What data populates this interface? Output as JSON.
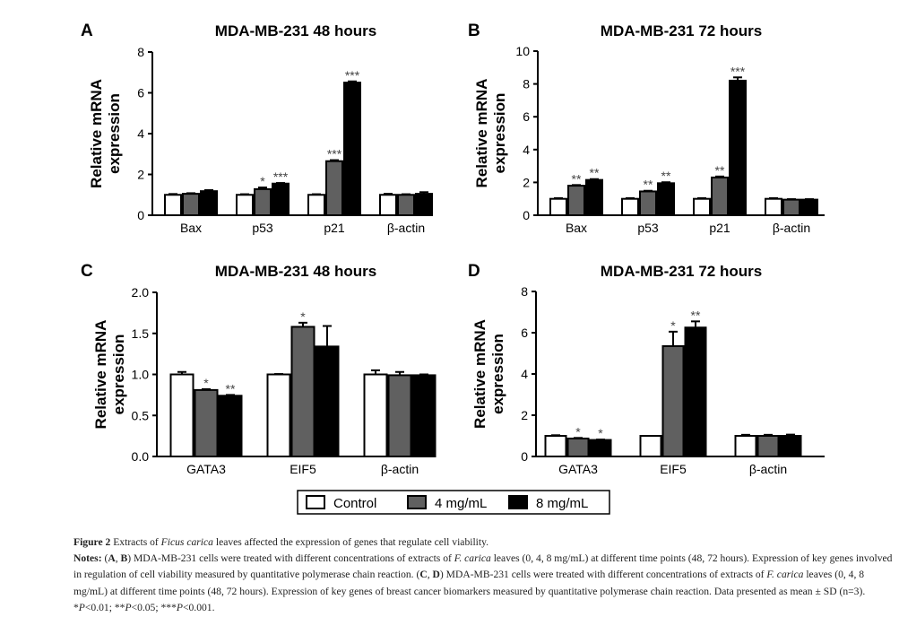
{
  "legend": {
    "items": [
      {
        "label": "Control",
        "color": "#ffffff"
      },
      {
        "label": "4 mg/mL",
        "color": "#606060"
      },
      {
        "label": "8 mg/mL",
        "color": "#000000"
      }
    ]
  },
  "chart_data": [
    {
      "panel": "A",
      "type": "bar",
      "title": "MDA-MB-231 48 hours",
      "ylabel": "Relative mRNA expression",
      "ylim": [
        0,
        8
      ],
      "yticks": [
        "0",
        "2",
        "4",
        "6",
        "8"
      ],
      "categories": [
        "Bax",
        "p53",
        "p21",
        "β-actin"
      ],
      "series": [
        {
          "name": "Control",
          "values": [
            1.0,
            1.0,
            1.0,
            1.0
          ],
          "errors": [
            0.04,
            0.03,
            0.03,
            0.05
          ]
        },
        {
          "name": "4 mg/mL",
          "values": [
            1.05,
            1.28,
            2.65,
            1.0
          ],
          "errors": [
            0.03,
            0.08,
            0.05,
            0.03
          ]
        },
        {
          "name": "8 mg/mL",
          "values": [
            1.18,
            1.55,
            6.5,
            1.05
          ],
          "errors": [
            0.05,
            0.03,
            0.06,
            0.08
          ]
        }
      ],
      "significance": [
        [
          "",
          "",
          ""
        ],
        [
          "",
          "*",
          "***"
        ],
        [
          "",
          "***",
          "***"
        ],
        [
          "",
          "",
          ""
        ]
      ]
    },
    {
      "panel": "B",
      "type": "bar",
      "title": "MDA-MB-231 72 hours",
      "ylabel": "Relative mRNA expression",
      "ylim": [
        0,
        10
      ],
      "yticks": [
        "0",
        "2",
        "4",
        "6",
        "8",
        "10"
      ],
      "categories": [
        "Bax",
        "p53",
        "p21",
        "β-actin"
      ],
      "series": [
        {
          "name": "Control",
          "values": [
            1.0,
            1.0,
            1.0,
            1.0
          ],
          "errors": [
            0.04,
            0.04,
            0.04,
            0.04
          ]
        },
        {
          "name": "4 mg/mL",
          "values": [
            1.8,
            1.45,
            2.3,
            0.95
          ],
          "errors": [
            0.04,
            0.04,
            0.06,
            0.03
          ]
        },
        {
          "name": "8 mg/mL",
          "values": [
            2.15,
            1.95,
            8.2,
            0.95
          ],
          "errors": [
            0.05,
            0.06,
            0.2,
            0.03
          ]
        }
      ],
      "significance": [
        [
          "",
          "**",
          "**"
        ],
        [
          "",
          "**",
          "**"
        ],
        [
          "",
          "**",
          "***"
        ],
        [
          "",
          "",
          ""
        ]
      ]
    },
    {
      "panel": "C",
      "type": "bar",
      "title": "MDA-MB-231 48 hours",
      "ylabel": "Relative mRNA expression",
      "ylim": [
        0,
        2.0
      ],
      "yticks": [
        "0.0",
        "0.5",
        "1.0",
        "1.5",
        "2.0"
      ],
      "categories": [
        "GATA3",
        "EIF5",
        "β-actin"
      ],
      "series": [
        {
          "name": "Control",
          "values": [
            1.0,
            1.0,
            1.0
          ],
          "errors": [
            0.03,
            0.005,
            0.05
          ]
        },
        {
          "name": "4 mg/mL",
          "values": [
            0.81,
            1.58,
            0.99
          ],
          "errors": [
            0.01,
            0.05,
            0.04
          ]
        },
        {
          "name": "8 mg/mL",
          "values": [
            0.74,
            1.34,
            0.99
          ],
          "errors": [
            0.01,
            0.25,
            0.01
          ]
        }
      ],
      "significance": [
        [
          "",
          "*",
          "**"
        ],
        [
          "",
          "*",
          ""
        ],
        [
          "",
          "",
          ""
        ]
      ]
    },
    {
      "panel": "D",
      "type": "bar",
      "title": "MDA-MB-231 72 hours",
      "ylabel": "Relative mRNA expression",
      "ylim": [
        0,
        8
      ],
      "yticks": [
        "0",
        "2",
        "4",
        "6",
        "8"
      ],
      "categories": [
        "GATA3",
        "EIF5",
        "β-actin"
      ],
      "series": [
        {
          "name": "Control",
          "values": [
            1.0,
            1.0,
            1.0
          ],
          "errors": [
            0.03,
            0.0,
            0.05
          ]
        },
        {
          "name": "4 mg/mL",
          "values": [
            0.87,
            5.35,
            1.0
          ],
          "errors": [
            0.03,
            0.7,
            0.05
          ]
        },
        {
          "name": "8 mg/mL",
          "values": [
            0.8,
            6.25,
            1.0
          ],
          "errors": [
            0.02,
            0.3,
            0.06
          ]
        }
      ],
      "significance": [
        [
          "",
          "*",
          "*"
        ],
        [
          "",
          "*",
          "**"
        ],
        [
          "",
          "",
          ""
        ]
      ]
    }
  ],
  "caption": {
    "fig_label": "Figure 2",
    "title_1": " Extracts of ",
    "title_italic": "Ficus carica",
    "title_2": " leaves affected the expression of genes that regulate cell viability.",
    "notes_label": "Notes:",
    "p1": " (",
    "ab_a": "A",
    "p2": ", ",
    "ab_b": "B",
    "p3": ") MDA-MB-231 cells were treated with different concentrations of extracts of ",
    "fc1": "F. carica",
    "p4": " leaves (0, 4, 8 mg/mL) at different time points (48, 72 hours). Expression of key genes involved in regulation of cell viability measured by quantitative polymerase chain reaction. (",
    "cd_c": "C",
    "p5": ", ",
    "cd_d": "D",
    "p6": ") MDA-MB-231 cells were treated with different concentrations of extracts of ",
    "fc2": "F. carica",
    "p7": " leaves (0, 4, 8 mg/mL) at different time points (48, 72 hours). Expression of key genes of breast cancer biomarkers measured by quantitative polymerase chain reaction. Data presented as mean ± SD (n=3). *",
    "pa": "P",
    "p8": "<0.01; **",
    "pb": "P",
    "p9": "<0.05; ***",
    "pc": "P",
    "p10": "<0.001."
  }
}
